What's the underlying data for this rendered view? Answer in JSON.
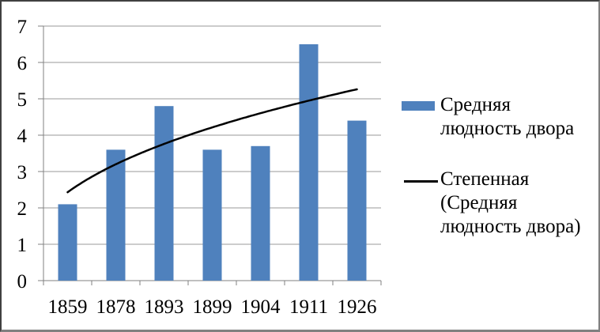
{
  "chart_data": {
    "type": "bar",
    "categories": [
      "1859",
      "1878",
      "1893",
      "1899",
      "1904",
      "1911",
      "1926"
    ],
    "series": [
      {
        "name": "Средняя людность двора",
        "kind": "bar",
        "color": "#4F81BD",
        "values": [
          2.1,
          3.6,
          4.8,
          3.6,
          3.7,
          6.5,
          4.4
        ]
      },
      {
        "name": "Степенная (Средняя людность двора)",
        "kind": "power-trendline",
        "color": "#000000",
        "a": 2.43,
        "b": 0.397,
        "values": [
          2.43,
          3.2,
          3.76,
          4.21,
          4.6,
          4.95,
          5.26
        ]
      }
    ],
    "title": "",
    "xlabel": "",
    "ylabel": "",
    "ylim": [
      0,
      7
    ],
    "ytick_interval": 1,
    "yticks": [
      "0",
      "1",
      "2",
      "3",
      "4",
      "5",
      "6",
      "7"
    ],
    "grid": true,
    "legend_position": "right",
    "gridline_color": "#999999",
    "axis_color": "#808080",
    "text_color": "#000000",
    "background_color": "#FFFFFF"
  },
  "legend": {
    "items": [
      {
        "swatch": "bar",
        "color": "#4F81BD",
        "label": "Средняя людность двора",
        "lines": [
          "Средняя",
          "людность двора"
        ]
      },
      {
        "swatch": "line",
        "color": "#000000",
        "label": "Степенная (Средняя людность двора)",
        "lines": [
          "Степенная",
          "(Средняя",
          "людность двора)"
        ]
      }
    ]
  }
}
